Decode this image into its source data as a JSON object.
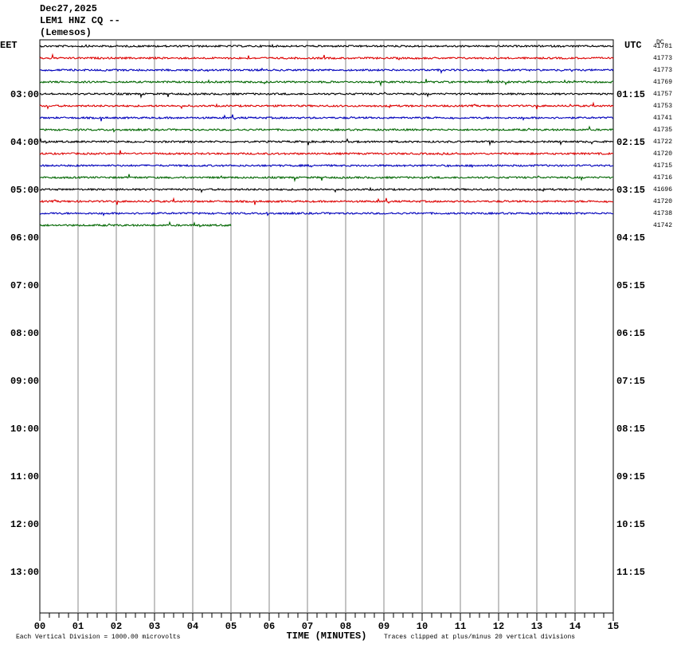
{
  "header": {
    "date": "Dec27,2025",
    "station": "LEM1 HNZ CQ --",
    "location": "(Lemesos)"
  },
  "left_axis": {
    "title": "EET",
    "labels": [
      "03:00",
      "04:00",
      "05:00",
      "06:00",
      "07:00",
      "08:00",
      "09:00",
      "10:00",
      "11:00",
      "12:00",
      "13:00"
    ]
  },
  "right_axis": {
    "title": "UTC",
    "labels": [
      "01:15",
      "02:15",
      "03:15",
      "04:15",
      "05:15",
      "06:15",
      "07:15",
      "08:15",
      "09:15",
      "10:15",
      "11:15"
    ]
  },
  "dc_title": "DC",
  "dc_values": [
    "41781",
    "41773",
    "41773",
    "41769",
    "41757",
    "41753",
    "41741",
    "41735",
    "41722",
    "41720",
    "41715",
    "41716",
    "41696",
    "41720",
    "41738",
    "41742"
  ],
  "x_axis": {
    "title": "TIME (MINUTES)",
    "labels": [
      "00",
      "01",
      "02",
      "03",
      "04",
      "05",
      "06",
      "07",
      "08",
      "09",
      "10",
      "11",
      "12",
      "13",
      "14",
      "15"
    ]
  },
  "footer": {
    "left": "Each Vertical Division = 1000.00 microvolts",
    "right": "Traces clipped at plus/minus 20 vertical divisions"
  },
  "trace_colors": [
    "#000000",
    "#dd0000",
    "#0000bb",
    "#006600"
  ],
  "last_trace_end_minute": 5
}
